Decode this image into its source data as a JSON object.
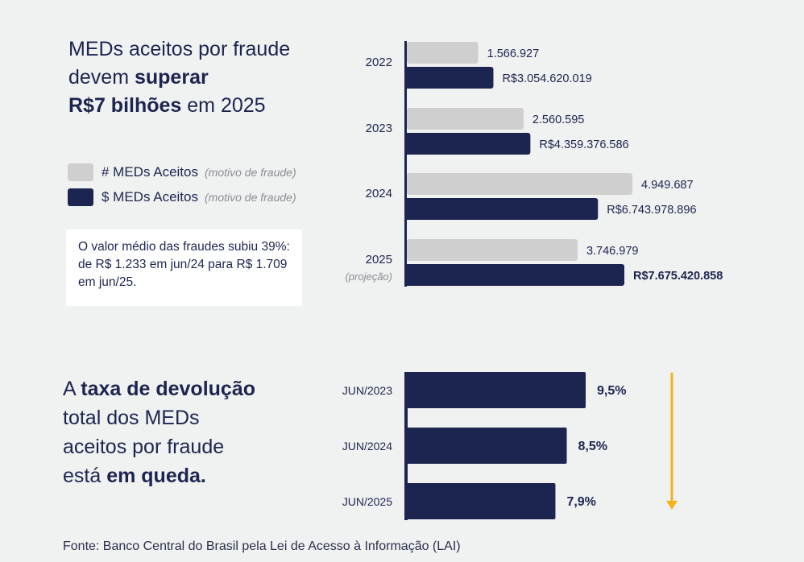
{
  "colors": {
    "background": "#f0f1f1",
    "navy": "#1c2550",
    "gray_bar": "#cfcfcf",
    "arrow": "#f5b31a",
    "muted_text": "#8a8d93"
  },
  "headline1": {
    "line1": "MEDs aceitos por fraude",
    "line2_normal": "devem ",
    "line2_bold": "superar",
    "line3_bold": "R$7 bilhões",
    "line3_normal": " em 2025"
  },
  "legend": [
    {
      "label": "# MEDs Aceitos",
      "sub": "(motivo de fraude)",
      "color": "#cfcfcf"
    },
    {
      "label": "$ MEDs Aceitos",
      "sub": "(motivo de fraude)",
      "color": "#1c2550"
    }
  ],
  "note": {
    "text": "O valor médio das fraudes subiu 39%: de R$ 1.233 em jun/24 para R$ 1.709 em jun/25."
  },
  "headline2": {
    "p1_normal": "A ",
    "p1_bold": "taxa de devolução",
    "line2": "total dos MEDs",
    "line3": "aceitos por fraude",
    "line4_normal": "está ",
    "line4_bold": "em queda."
  },
  "source": "Fonte: Banco Central do Brasil pela Lei de Acesso à Informação (LAI)",
  "chart_data": [
    {
      "type": "bar",
      "orientation": "horizontal",
      "title": "MEDs aceitos por fraude",
      "categories": [
        "2022",
        "2023",
        "2024",
        "2025"
      ],
      "category_notes": [
        "",
        "",
        "",
        "(projeção)"
      ],
      "series": [
        {
          "name": "# MEDs Aceitos (motivo de fraude)",
          "color": "#cfcfcf",
          "values": [
            1566927,
            2560595,
            4949687,
            3746979
          ],
          "labels": [
            "1.566.927",
            "2.560.595",
            "4.949.687",
            "3.746.979"
          ]
        },
        {
          "name": "$ MEDs Aceitos (motivo de fraude)",
          "color": "#1c2550",
          "values": [
            3054620019,
            4359376586,
            6743978896,
            7675420858
          ],
          "labels": [
            "R$3.054.620.019",
            "R$4.359.376.586",
            "R$6.743.978.896",
            "R$7.675.420.858"
          ]
        }
      ],
      "xlabel": "",
      "ylabel": "",
      "grid": false,
      "legend": "left"
    },
    {
      "type": "bar",
      "orientation": "horizontal",
      "title": "Taxa de devolução total dos MEDs aceitos por fraude",
      "categories": [
        "JUN/2023",
        "JUN/2024",
        "JUN/2025"
      ],
      "series": [
        {
          "name": "Taxa de devolução",
          "color": "#1c2550",
          "values": [
            9.5,
            8.5,
            7.9
          ],
          "labels": [
            "9,5%",
            "8,5%",
            "7,9%"
          ]
        }
      ],
      "annotation": "downward-trend-arrow",
      "grid": false
    }
  ]
}
